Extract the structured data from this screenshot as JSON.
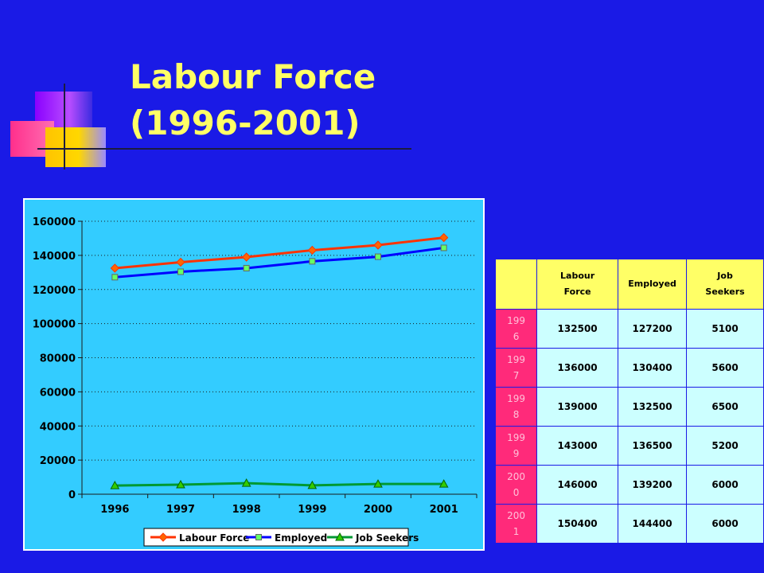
{
  "slide": {
    "title_line1": "Labour Force",
    "title_line2": "(1996-2001)"
  },
  "colors": {
    "background": "#1a1ae6",
    "title": "#ffff66",
    "chart_plot_bg": "#33ccff",
    "labour_force": "#ff3300",
    "employed": "#0000ff",
    "job_seekers": "#009933",
    "table_header_bg": "#ffff66",
    "table_year_bg": "#ff2a7a",
    "table_cell_bg": "#ccffff"
  },
  "chart_data": {
    "type": "line",
    "title": "",
    "xlabel": "",
    "ylabel": "",
    "x": [
      "1996",
      "1997",
      "1998",
      "1999",
      "2000",
      "2001"
    ],
    "ylim": [
      0,
      160000
    ],
    "yticks": [
      "0",
      "20000",
      "40000",
      "60000",
      "80000",
      "100000",
      "120000",
      "140000",
      "160000"
    ],
    "grid": "horizontal dotted",
    "legend_position": "bottom",
    "series": [
      {
        "name": "Labour Force",
        "marker": "diamond",
        "values": [
          132500,
          136000,
          139000,
          143000,
          146000,
          150400
        ]
      },
      {
        "name": "Employed",
        "marker": "square",
        "values": [
          127200,
          130400,
          132500,
          136500,
          139200,
          144400
        ]
      },
      {
        "name": "Job Seekers",
        "marker": "triangle",
        "values": [
          5100,
          5600,
          6500,
          5200,
          6000,
          6000
        ]
      }
    ]
  },
  "table": {
    "headers": [
      "",
      "Labour Force",
      "Employed",
      "Job Seekers"
    ],
    "header_lines": [
      [
        ""
      ],
      [
        "Labour",
        "Force"
      ],
      [
        "Employed"
      ],
      [
        "Job",
        "Seekers"
      ]
    ],
    "rows": [
      {
        "year_lines": [
          "199",
          "6"
        ],
        "labour_force": "132500",
        "employed": "127200",
        "job_seekers": "5100"
      },
      {
        "year_lines": [
          "199",
          "7"
        ],
        "labour_force": "136000",
        "employed": "130400",
        "job_seekers": "5600"
      },
      {
        "year_lines": [
          "199",
          "8"
        ],
        "labour_force": "139000",
        "employed": "132500",
        "job_seekers": "6500"
      },
      {
        "year_lines": [
          "199",
          "9"
        ],
        "labour_force": "143000",
        "employed": "136500",
        "job_seekers": "5200"
      },
      {
        "year_lines": [
          "200",
          "0"
        ],
        "labour_force": "146000",
        "employed": "139200",
        "job_seekers": "6000"
      },
      {
        "year_lines": [
          "200",
          "1"
        ],
        "labour_force": "150400",
        "employed": "144400",
        "job_seekers": "6000"
      }
    ]
  }
}
